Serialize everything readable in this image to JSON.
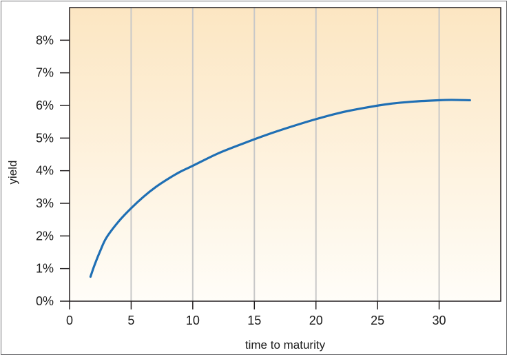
{
  "chart_data": {
    "type": "line",
    "title": "",
    "xlabel": "time to maturity",
    "ylabel": "yield",
    "xlim": [
      0,
      35
    ],
    "ylim": [
      0,
      9
    ],
    "x_ticks": [
      0,
      5,
      10,
      15,
      20,
      25,
      30
    ],
    "x_tick_labels": [
      "0",
      "5",
      "10",
      "15",
      "20",
      "25",
      "30"
    ],
    "y_ticks": [
      0,
      1,
      2,
      3,
      4,
      5,
      6,
      7,
      8
    ],
    "y_tick_labels": [
      "0%",
      "1%",
      "2%",
      "3%",
      "4%",
      "5%",
      "6%",
      "7%",
      "8%"
    ],
    "grid": "vertical",
    "colors": {
      "line": "#1f6fb4",
      "gradient_top": "#fce6c2",
      "gradient_bottom": "#fffdf8",
      "gridline": "#c8c8c8",
      "axis": "#231f20"
    },
    "series": [
      {
        "x": [
          1.7,
          2,
          2.5,
          3,
          4,
          5,
          6,
          7,
          8,
          9,
          10,
          12,
          14,
          16,
          18,
          20,
          22,
          24,
          26,
          28,
          30,
          31,
          32.5
        ],
        "y": [
          0.75,
          1.08,
          1.55,
          1.95,
          2.45,
          2.85,
          3.2,
          3.5,
          3.75,
          3.97,
          4.15,
          4.52,
          4.82,
          5.1,
          5.35,
          5.58,
          5.78,
          5.93,
          6.05,
          6.12,
          6.16,
          6.17,
          6.16
        ]
      }
    ]
  }
}
